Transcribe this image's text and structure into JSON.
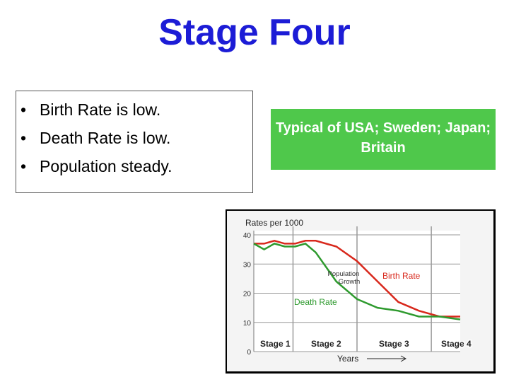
{
  "slide": {
    "title": "Stage Four",
    "bullets": [
      "Birth Rate is low.",
      "Death Rate is low.",
      "Population steady."
    ],
    "bullet_symbol": "•",
    "note": "Typical of USA; Sweden; Japan; Britain",
    "colors": {
      "title": "#1c1cd6",
      "note_box": "#4fc84b",
      "birth_line": "#d8281c",
      "death_line": "#2e9a2e"
    }
  },
  "chart_data": {
    "type": "line",
    "ylabel": "Rates per 1000",
    "xlabel": "Years",
    "ylim": [
      0,
      40
    ],
    "yticks": [
      "0",
      "10",
      "20",
      "30",
      "40"
    ],
    "grid": true,
    "stages": [
      "Stage 1",
      "Stage 2",
      "Stage 3",
      "Stage 4"
    ],
    "x": [
      0,
      5,
      10,
      15,
      20,
      25,
      30,
      40,
      50,
      60,
      70,
      80,
      90,
      100
    ],
    "series": [
      {
        "name": "Birth Rate",
        "values": [
          37,
          37,
          38,
          37,
          37,
          38,
          38,
          36,
          31,
          24,
          17,
          14,
          12,
          12
        ]
      },
      {
        "name": "Death Rate",
        "values": [
          37,
          35,
          37,
          36,
          36,
          37,
          34,
          24,
          18,
          15,
          14,
          12,
          12,
          11
        ]
      }
    ],
    "annotations": [
      "Population Growth"
    ]
  }
}
